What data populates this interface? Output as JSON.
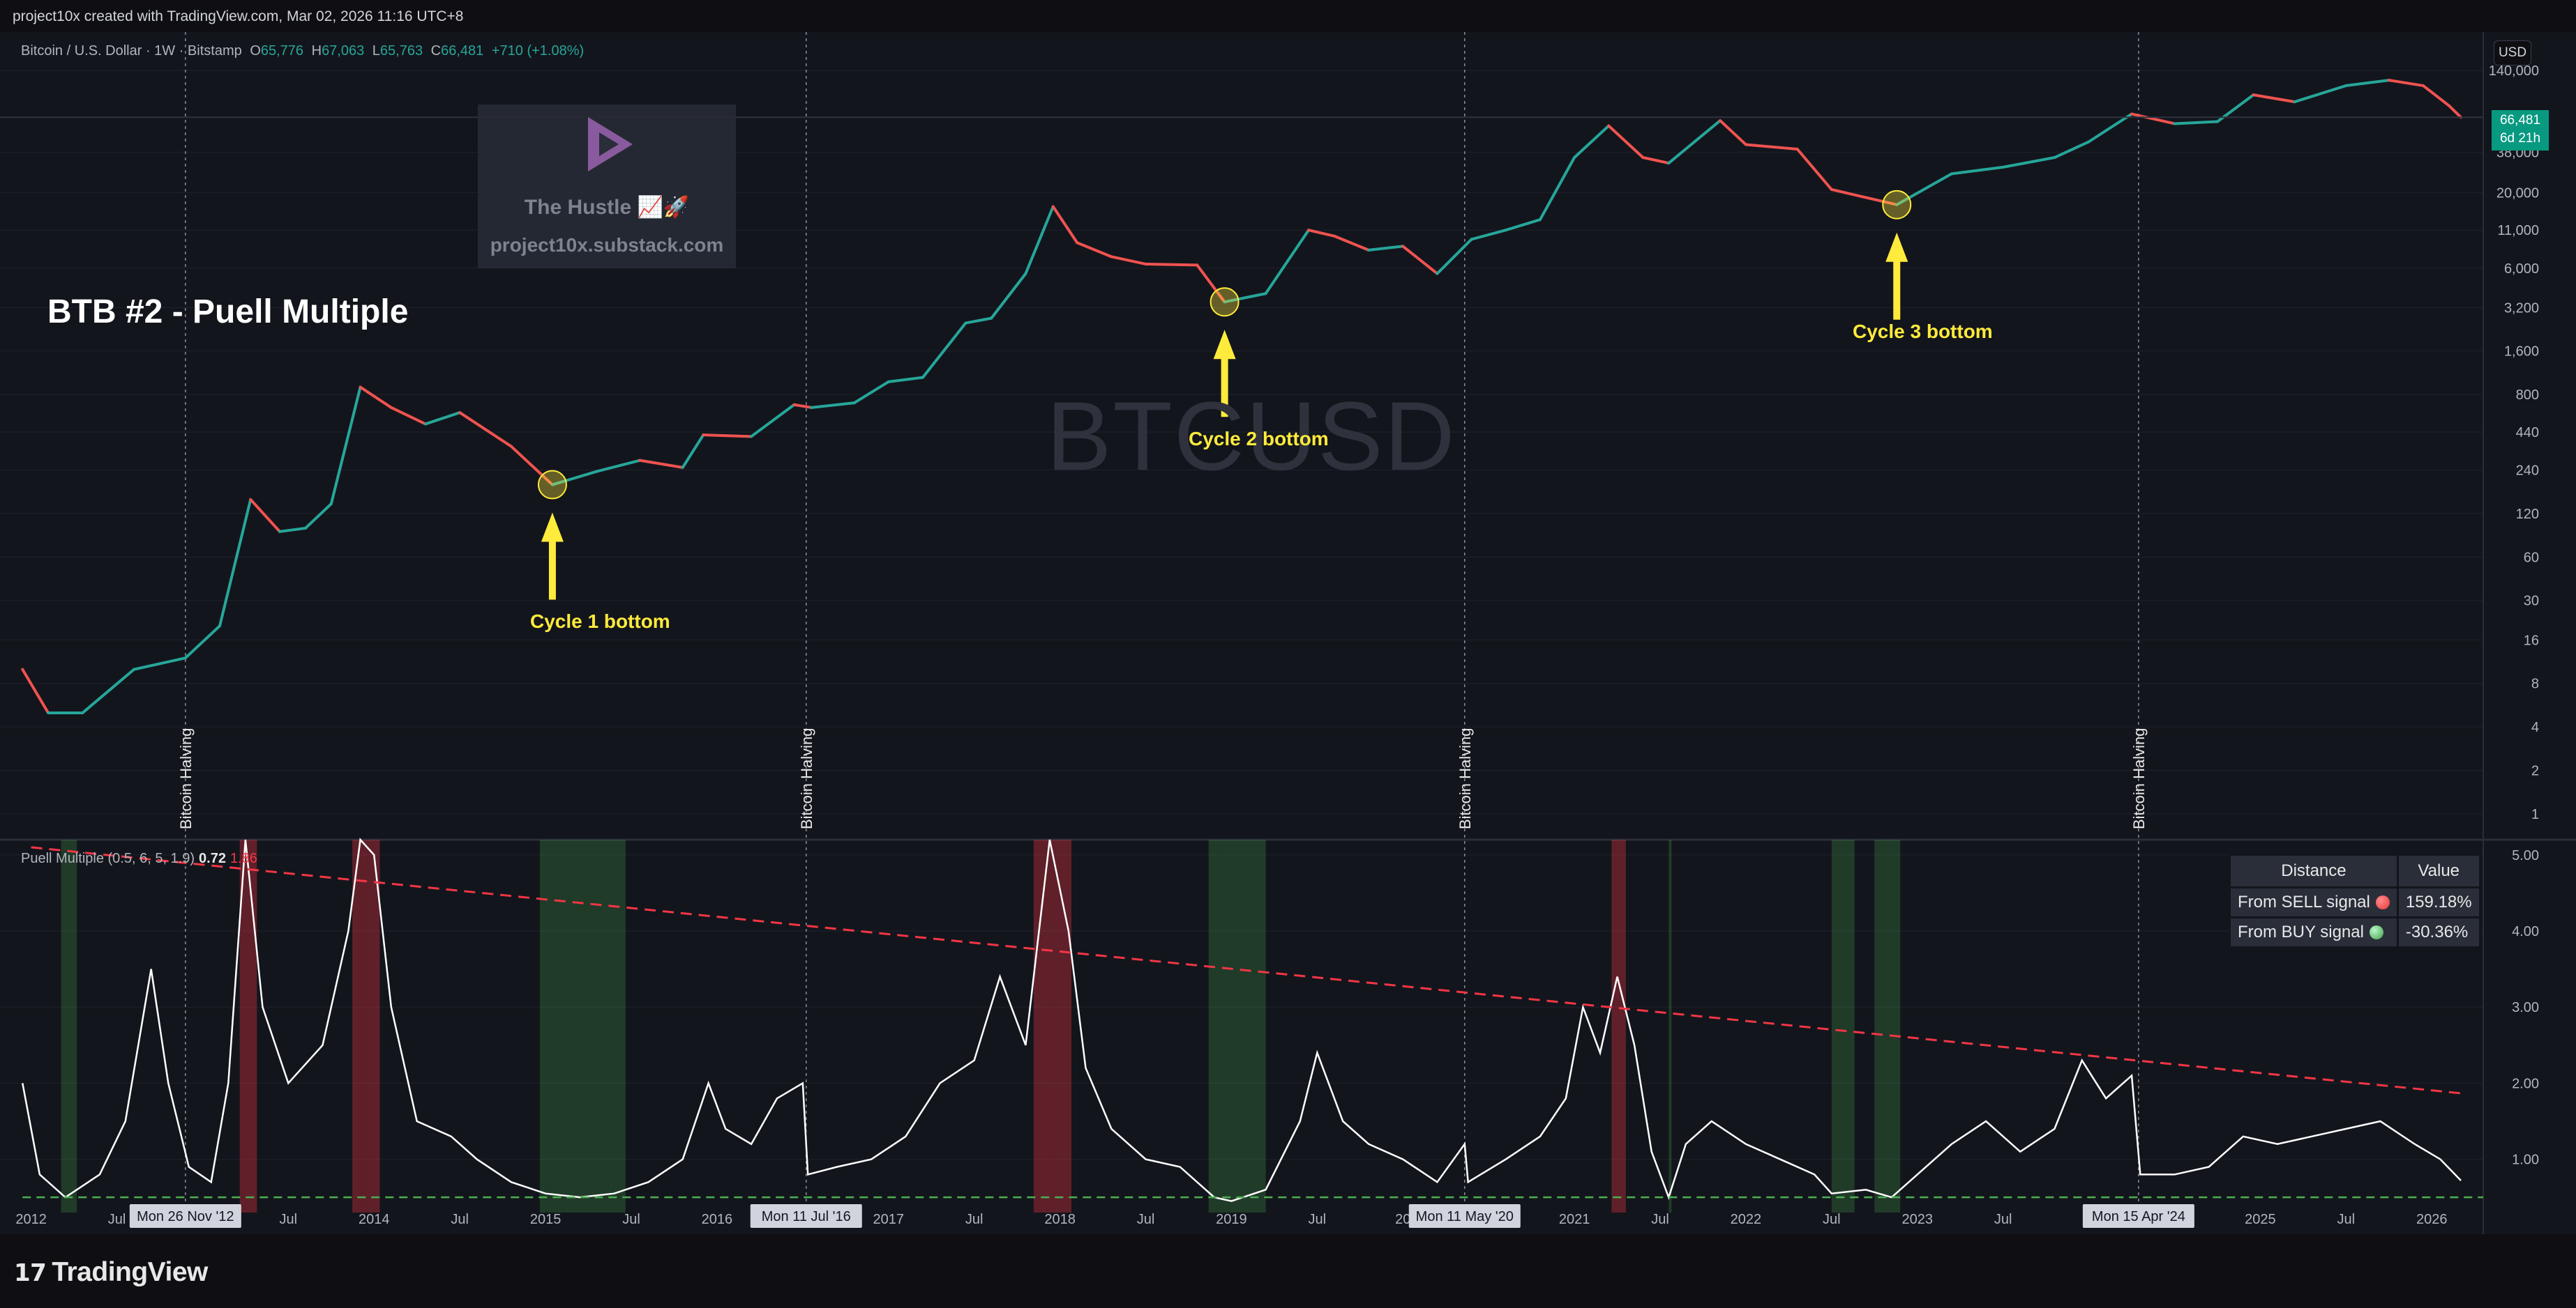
{
  "header": {
    "credit": "project10x created with TradingView.com, Mar 02, 2026 11:16 UTC+8"
  },
  "symbol_line": {
    "name": "Bitcoin / U.S. Dollar · 1W · Bitstamp",
    "open_label": "O",
    "open": "65,776",
    "high_label": "H",
    "high": "67,063",
    "low_label": "L",
    "low": "65,763",
    "close_label": "C",
    "close": "66,481",
    "change": "+710 (+1.08%)"
  },
  "title": "BTB #2 - Puell Multiple",
  "watermark": {
    "brand": "The Hustle 📈🚀",
    "url": "project10x.substack.com",
    "symbol": "BTCUSD"
  },
  "annotations": {
    "cycle1": "Cycle 1 bottom",
    "cycle2": "Cycle 2 bottom",
    "cycle3": "Cycle 3 bottom",
    "halving": "Bitcoin Halving"
  },
  "currency_button": "USD",
  "last_price": {
    "price": "66,481",
    "countdown": "6d 21h"
  },
  "indicator_line": {
    "name": "Puell Multiple (0.5, 6, 5, 1.9)",
    "value": "0.72",
    "value2": "1.86"
  },
  "signal_table": {
    "headers": [
      "Distance",
      "Value"
    ],
    "rows": [
      {
        "label": "From SELL signal",
        "value": "159.18%",
        "status": "red"
      },
      {
        "label": "From BUY signal",
        "value": "-30.36%",
        "status": "green"
      }
    ]
  },
  "time_axis": {
    "labels": [
      "2012",
      "Jul",
      "Jul",
      "2014",
      "Jul",
      "2015",
      "Jul",
      "2016",
      "2017",
      "Jul",
      "2018",
      "Jul",
      "2019",
      "Jul",
      "20",
      "2021",
      "Jul",
      "2022",
      "Jul",
      "2023",
      "Jul",
      "2",
      "2025",
      "Jul",
      "2026"
    ],
    "halving_dates": [
      "Mon 26 Nov '12",
      "Mon 11 Jul '16",
      "Mon 11 May '20",
      "Mon 15 Apr '24"
    ]
  },
  "footer": {
    "brand": "TradingView"
  },
  "colors": {
    "up": "#26a69a",
    "down": "#ef5350",
    "accent_yellow": "#ffeb3b",
    "sell_line": "#f23645",
    "buy_line": "#4caf50",
    "puell_line": "#ffffff"
  },
  "chart_data": [
    {
      "type": "line",
      "title": "Bitcoin / U.S. Dollar · 1W · Bitstamp",
      "scale": "log",
      "ylim": [
        0.7,
        150000
      ],
      "y_ticks": [
        1,
        2,
        4,
        8,
        16,
        30,
        60,
        120,
        240,
        440,
        800,
        1600,
        3200,
        6000,
        11000,
        20000,
        38000,
        140000
      ],
      "y_tick_labels": [
        "1",
        "2",
        "4",
        "8",
        "16",
        "30",
        "60",
        "120",
        "240",
        "440",
        "800",
        "1,600",
        "3,200",
        "6,000",
        "11,000",
        "20,000",
        "38,000",
        "140,000"
      ],
      "x_range": [
        2011.9,
        2026.3
      ],
      "series": [
        {
          "points": [
            [
              2011.95,
              10
            ],
            [
              2012.1,
              5
            ],
            [
              2012.3,
              5
            ],
            [
              2012.6,
              10
            ],
            [
              2012.9,
              12
            ],
            [
              2013.1,
              20
            ],
            [
              2013.28,
              150
            ],
            [
              2013.45,
              90
            ],
            [
              2013.6,
              95
            ],
            [
              2013.75,
              140
            ],
            [
              2013.92,
              900
            ],
            [
              2014.1,
              650
            ],
            [
              2014.3,
              500
            ],
            [
              2014.5,
              600
            ],
            [
              2014.8,
              350
            ],
            [
              2015.04,
              190
            ],
            [
              2015.3,
              235
            ],
            [
              2015.55,
              280
            ],
            [
              2015.8,
              250
            ],
            [
              2015.92,
              420
            ],
            [
              2016.2,
              410
            ],
            [
              2016.45,
              680
            ],
            [
              2016.55,
              650
            ],
            [
              2016.8,
              700
            ],
            [
              2017.0,
              980
            ],
            [
              2017.2,
              1050
            ],
            [
              2017.45,
              2500
            ],
            [
              2017.6,
              2700
            ],
            [
              2017.8,
              5500
            ],
            [
              2017.96,
              16000
            ],
            [
              2018.1,
              9000
            ],
            [
              2018.3,
              7200
            ],
            [
              2018.5,
              6400
            ],
            [
              2018.8,
              6300
            ],
            [
              2018.96,
              3500
            ],
            [
              2019.2,
              4000
            ],
            [
              2019.45,
              11000
            ],
            [
              2019.6,
              10000
            ],
            [
              2019.8,
              8000
            ],
            [
              2020.0,
              8500
            ],
            [
              2020.2,
              5500
            ],
            [
              2020.4,
              9500
            ],
            [
              2020.6,
              11000
            ],
            [
              2020.8,
              13000
            ],
            [
              2021.0,
              35000
            ],
            [
              2021.2,
              58000
            ],
            [
              2021.4,
              35000
            ],
            [
              2021.55,
              32000
            ],
            [
              2021.85,
              63000
            ],
            [
              2022.0,
              43000
            ],
            [
              2022.3,
              40000
            ],
            [
              2022.5,
              21000
            ],
            [
              2022.88,
              16500
            ],
            [
              2023.2,
              27000
            ],
            [
              2023.5,
              30000
            ],
            [
              2023.8,
              35000
            ],
            [
              2024.0,
              45000
            ],
            [
              2024.25,
              70000
            ],
            [
              2024.5,
              60000
            ],
            [
              2024.75,
              62000
            ],
            [
              2024.96,
              95000
            ],
            [
              2025.2,
              85000
            ],
            [
              2025.5,
              110000
            ],
            [
              2025.75,
              120000
            ],
            [
              2025.95,
              110000
            ],
            [
              2026.1,
              80000
            ],
            [
              2026.17,
              66481
            ]
          ]
        }
      ]
    },
    {
      "type": "line",
      "title": "Puell Multiple (0.5, 6, 5, 1.9)",
      "ylim": [
        0.3,
        5.2
      ],
      "y_ticks": [
        1,
        2,
        3,
        4,
        5
      ],
      "y_tick_labels": [
        "1.00",
        "2.00",
        "3.00",
        "4.00",
        "5.00"
      ],
      "buy_threshold": 0.5,
      "sell_line": {
        "x": [
          2012.0,
          2026.2
        ],
        "y": [
          5.1,
          1.86
        ]
      },
      "series": [
        {
          "name": "Puell Multiple",
          "points": [
            [
              2011.95,
              2.0
            ],
            [
              2012.05,
              0.8
            ],
            [
              2012.2,
              0.5
            ],
            [
              2012.4,
              0.8
            ],
            [
              2012.55,
              1.5
            ],
            [
              2012.7,
              3.5
            ],
            [
              2012.8,
              2.0
            ],
            [
              2012.92,
              0.9
            ],
            [
              2013.05,
              0.7
            ],
            [
              2013.15,
              2.0
            ],
            [
              2013.25,
              7.0
            ],
            [
              2013.35,
              3.0
            ],
            [
              2013.5,
              2.0
            ],
            [
              2013.7,
              2.5
            ],
            [
              2013.85,
              4.0
            ],
            [
              2013.92,
              7.5
            ],
            [
              2014.0,
              5.0
            ],
            [
              2014.1,
              3.0
            ],
            [
              2014.25,
              1.5
            ],
            [
              2014.45,
              1.3
            ],
            [
              2014.6,
              1.0
            ],
            [
              2014.8,
              0.7
            ],
            [
              2015.0,
              0.55
            ],
            [
              2015.2,
              0.5
            ],
            [
              2015.4,
              0.55
            ],
            [
              2015.6,
              0.7
            ],
            [
              2015.8,
              1.0
            ],
            [
              2015.95,
              2.0
            ],
            [
              2016.05,
              1.4
            ],
            [
              2016.2,
              1.2
            ],
            [
              2016.35,
              1.8
            ],
            [
              2016.5,
              2.0
            ],
            [
              2016.53,
              0.8
            ],
            [
              2016.7,
              0.9
            ],
            [
              2016.9,
              1.0
            ],
            [
              2017.1,
              1.3
            ],
            [
              2017.3,
              2.0
            ],
            [
              2017.5,
              2.3
            ],
            [
              2017.65,
              3.4
            ],
            [
              2017.8,
              2.5
            ],
            [
              2017.94,
              6.5
            ],
            [
              2018.05,
              4.0
            ],
            [
              2018.15,
              2.2
            ],
            [
              2018.3,
              1.4
            ],
            [
              2018.5,
              1.0
            ],
            [
              2018.7,
              0.9
            ],
            [
              2018.9,
              0.5
            ],
            [
              2019.0,
              0.45
            ],
            [
              2019.2,
              0.6
            ],
            [
              2019.4,
              1.5
            ],
            [
              2019.5,
              2.4
            ],
            [
              2019.65,
              1.5
            ],
            [
              2019.8,
              1.2
            ],
            [
              2020.0,
              1.0
            ],
            [
              2020.2,
              0.7
            ],
            [
              2020.36,
              1.2
            ],
            [
              2020.38,
              0.7
            ],
            [
              2020.6,
              1.0
            ],
            [
              2020.8,
              1.3
            ],
            [
              2020.95,
              1.8
            ],
            [
              2021.05,
              3.0
            ],
            [
              2021.15,
              2.4
            ],
            [
              2021.25,
              3.4
            ],
            [
              2021.35,
              2.5
            ],
            [
              2021.45,
              1.1
            ],
            [
              2021.55,
              0.5
            ],
            [
              2021.65,
              1.2
            ],
            [
              2021.8,
              1.5
            ],
            [
              2022.0,
              1.2
            ],
            [
              2022.2,
              1.0
            ],
            [
              2022.4,
              0.8
            ],
            [
              2022.5,
              0.55
            ],
            [
              2022.7,
              0.6
            ],
            [
              2022.85,
              0.5
            ],
            [
              2023.0,
              0.8
            ],
            [
              2023.2,
              1.2
            ],
            [
              2023.4,
              1.5
            ],
            [
              2023.6,
              1.1
            ],
            [
              2023.8,
              1.4
            ],
            [
              2023.96,
              2.3
            ],
            [
              2024.1,
              1.8
            ],
            [
              2024.25,
              2.1
            ],
            [
              2024.3,
              0.8
            ],
            [
              2024.5,
              0.8
            ],
            [
              2024.7,
              0.9
            ],
            [
              2024.9,
              1.3
            ],
            [
              2025.1,
              1.2
            ],
            [
              2025.3,
              1.3
            ],
            [
              2025.5,
              1.4
            ],
            [
              2025.7,
              1.5
            ],
            [
              2025.9,
              1.2
            ],
            [
              2026.05,
              1.0
            ],
            [
              2026.17,
              0.72
            ]
          ]
        }
      ]
    }
  ]
}
